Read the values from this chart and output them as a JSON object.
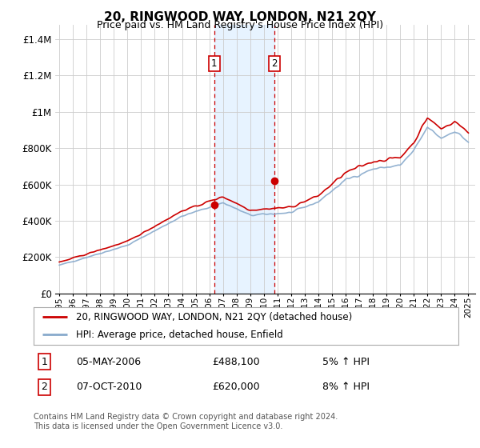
{
  "title": "20, RINGWOOD WAY, LONDON, N21 2QY",
  "subtitle": "Price paid vs. HM Land Registry's House Price Index (HPI)",
  "ylabel_ticks": [
    "£0",
    "£200K",
    "£400K",
    "£600K",
    "£800K",
    "£1M",
    "£1.2M",
    "£1.4M"
  ],
  "ylabel_values": [
    0,
    200000,
    400000,
    600000,
    800000,
    1000000,
    1200000,
    1400000
  ],
  "ylim": [
    0,
    1480000
  ],
  "xlim_start": 1994.7,
  "xlim_end": 2025.5,
  "x_ticks": [
    1995,
    1996,
    1997,
    1998,
    1999,
    2000,
    2001,
    2002,
    2003,
    2004,
    2005,
    2006,
    2007,
    2008,
    2009,
    2010,
    2011,
    2012,
    2013,
    2014,
    2015,
    2016,
    2017,
    2018,
    2019,
    2020,
    2021,
    2022,
    2023,
    2024,
    2025
  ],
  "sale1_x": 2006.35,
  "sale1_y": 488100,
  "sale1_label": "1",
  "sale1_date": "05-MAY-2006",
  "sale1_price": "£488,100",
  "sale1_hpi": "5% ↑ HPI",
  "sale2_x": 2010.76,
  "sale2_y": 620000,
  "sale2_label": "2",
  "sale2_date": "07-OCT-2010",
  "sale2_price": "£620,000",
  "sale2_hpi": "8% ↑ HPI",
  "legend_line1": "20, RINGWOOD WAY, LONDON, N21 2QY (detached house)",
  "legend_line2": "HPI: Average price, detached house, Enfield",
  "footnote": "Contains HM Land Registry data © Crown copyright and database right 2024.\nThis data is licensed under the Open Government Licence v3.0.",
  "sale_color": "#cc0000",
  "hpi_color": "#88aacc",
  "shade_color": "#ddeeff",
  "grid_color": "#cccccc",
  "background_color": "#ffffff"
}
